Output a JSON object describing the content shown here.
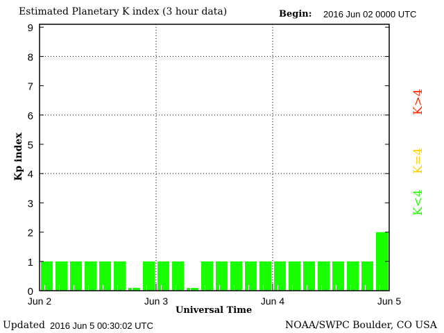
{
  "chart_data": {
    "type": "bar",
    "title": "Estimated Planetary K index (3 hour data)",
    "begin_label": "Begin:",
    "begin_value": "2016 Jun 02 0000 UTC",
    "xlabel": "Universal Time",
    "ylabel": "Kp index",
    "ylim": [
      0,
      9
    ],
    "yticks": [
      "0",
      "1",
      "2",
      "3",
      "4",
      "5",
      "6",
      "7",
      "8",
      "9"
    ],
    "ygrid": [
      4,
      6,
      8
    ],
    "xticks": [
      "Jun 2",
      "Jun 3",
      "Jun 4",
      "Jun 5"
    ],
    "bar_interval_hours": 3,
    "values": [
      1,
      1,
      1,
      1,
      1,
      1,
      0,
      1,
      1,
      1,
      0,
      1,
      1,
      1,
      1,
      1,
      1,
      1,
      1,
      1,
      1,
      1,
      1,
      2
    ],
    "legend": [
      {
        "label": "K>4",
        "color": "#ff2a00"
      },
      {
        "label": "K=4",
        "color": "#ffd000"
      },
      {
        "label": "K<4",
        "color": "#22ff00"
      }
    ],
    "bar_color": "#1aff00"
  },
  "footer": {
    "updated_label": "Updated",
    "updated_value": "2016 Jun  5 00:30:02 UTC",
    "source": "NOAA/SWPC Boulder, CO USA"
  }
}
